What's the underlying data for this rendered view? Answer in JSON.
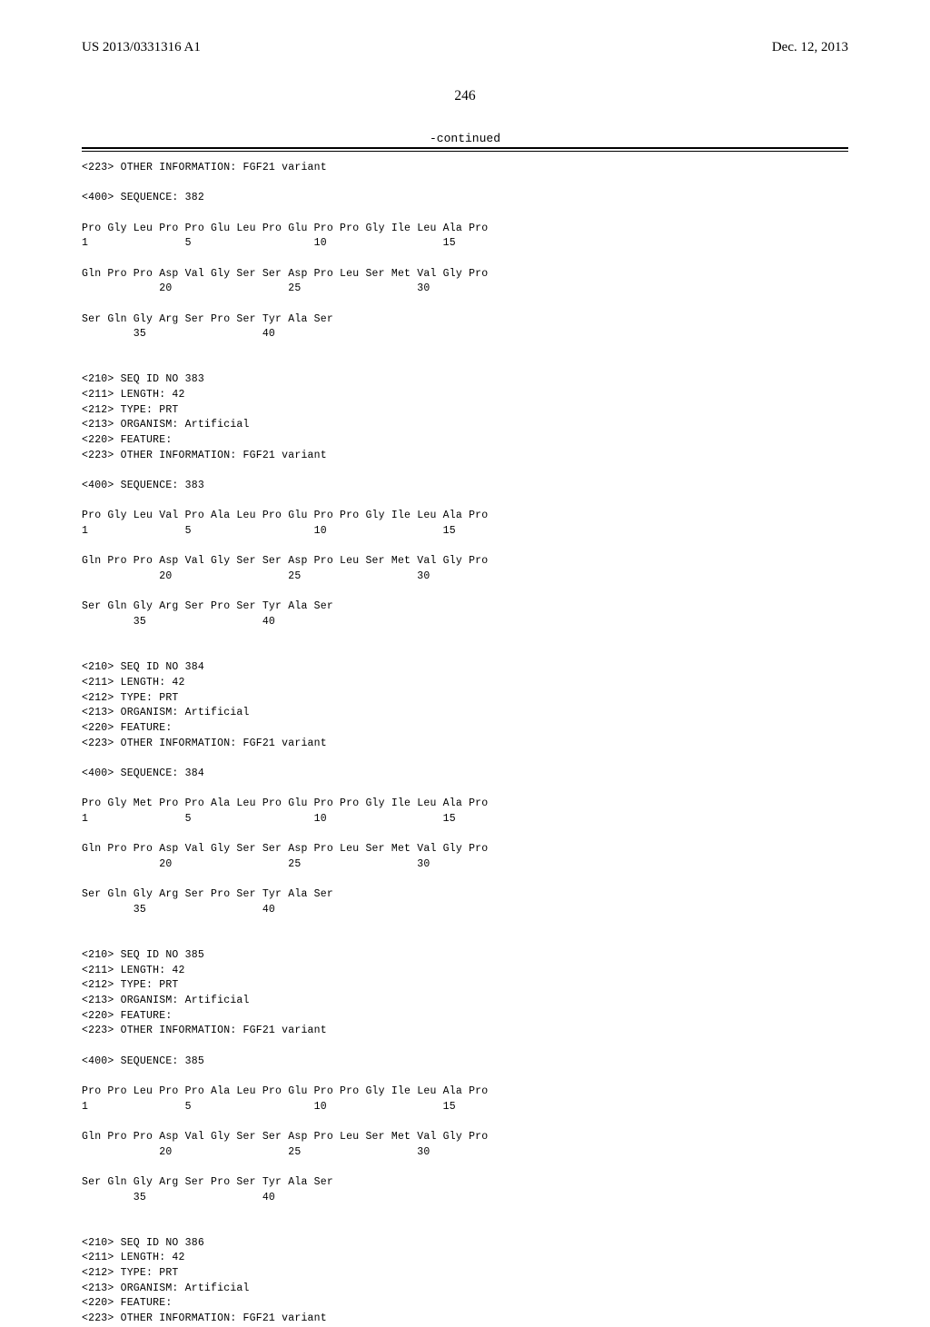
{
  "header": {
    "publication_number": "US 2013/0331316 A1",
    "publication_date": "Dec. 12, 2013"
  },
  "page_label": "246",
  "continued_label": "-continued",
  "lines": [
    "<223> OTHER INFORMATION: FGF21 variant",
    "",
    "<400> SEQUENCE: 382",
    "",
    "Pro Gly Leu Pro Pro Glu Leu Pro Glu Pro Pro Gly Ile Leu Ala Pro",
    "1               5                   10                  15",
    "",
    "Gln Pro Pro Asp Val Gly Ser Ser Asp Pro Leu Ser Met Val Gly Pro",
    "            20                  25                  30",
    "",
    "Ser Gln Gly Arg Ser Pro Ser Tyr Ala Ser",
    "        35                  40",
    "",
    "",
    "<210> SEQ ID NO 383",
    "<211> LENGTH: 42",
    "<212> TYPE: PRT",
    "<213> ORGANISM: Artificial",
    "<220> FEATURE:",
    "<223> OTHER INFORMATION: FGF21 variant",
    "",
    "<400> SEQUENCE: 383",
    "",
    "Pro Gly Leu Val Pro Ala Leu Pro Glu Pro Pro Gly Ile Leu Ala Pro",
    "1               5                   10                  15",
    "",
    "Gln Pro Pro Asp Val Gly Ser Ser Asp Pro Leu Ser Met Val Gly Pro",
    "            20                  25                  30",
    "",
    "Ser Gln Gly Arg Ser Pro Ser Tyr Ala Ser",
    "        35                  40",
    "",
    "",
    "<210> SEQ ID NO 384",
    "<211> LENGTH: 42",
    "<212> TYPE: PRT",
    "<213> ORGANISM: Artificial",
    "<220> FEATURE:",
    "<223> OTHER INFORMATION: FGF21 variant",
    "",
    "<400> SEQUENCE: 384",
    "",
    "Pro Gly Met Pro Pro Ala Leu Pro Glu Pro Pro Gly Ile Leu Ala Pro",
    "1               5                   10                  15",
    "",
    "Gln Pro Pro Asp Val Gly Ser Ser Asp Pro Leu Ser Met Val Gly Pro",
    "            20                  25                  30",
    "",
    "Ser Gln Gly Arg Ser Pro Ser Tyr Ala Ser",
    "        35                  40",
    "",
    "",
    "<210> SEQ ID NO 385",
    "<211> LENGTH: 42",
    "<212> TYPE: PRT",
    "<213> ORGANISM: Artificial",
    "<220> FEATURE:",
    "<223> OTHER INFORMATION: FGF21 variant",
    "",
    "<400> SEQUENCE: 385",
    "",
    "Pro Pro Leu Pro Pro Ala Leu Pro Glu Pro Pro Gly Ile Leu Ala Pro",
    "1               5                   10                  15",
    "",
    "Gln Pro Pro Asp Val Gly Ser Ser Asp Pro Leu Ser Met Val Gly Pro",
    "            20                  25                  30",
    "",
    "Ser Gln Gly Arg Ser Pro Ser Tyr Ala Ser",
    "        35                  40",
    "",
    "",
    "<210> SEQ ID NO 386",
    "<211> LENGTH: 42",
    "<212> TYPE: PRT",
    "<213> ORGANISM: Artificial",
    "<220> FEATURE:",
    "<223> OTHER INFORMATION: FGF21 variant"
  ]
}
